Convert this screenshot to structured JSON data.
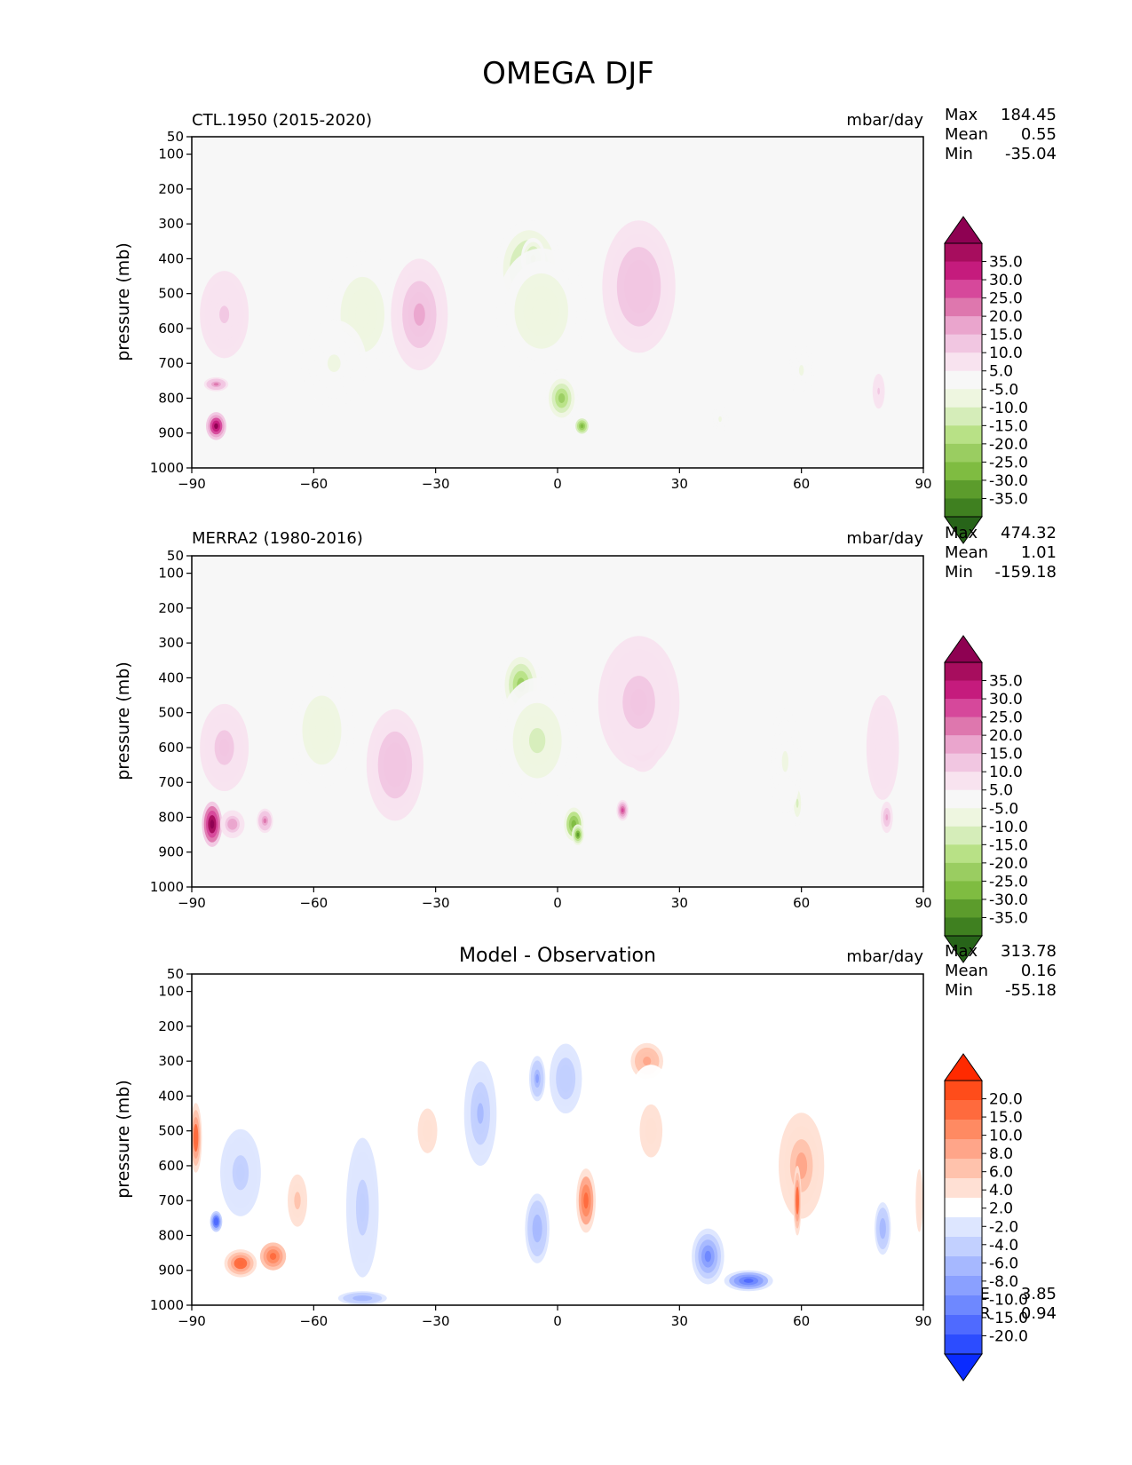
{
  "figure_title": "OMEGA DJF",
  "chart_data": [
    {
      "type": "heatmap",
      "id": "test",
      "title_left": "CTL.1950 (2015-2020)",
      "title_center": "",
      "units": "mbar/day",
      "ylabel": "pressure (mb)",
      "xticks": [
        "−90",
        "−60",
        "−30",
        "0",
        "30",
        "60",
        "90"
      ],
      "yticks": [
        "50",
        "100",
        "200",
        "300",
        "400",
        "500",
        "600",
        "700",
        "800",
        "900",
        "1000"
      ],
      "xlim": [
        -90,
        90
      ],
      "ylim": [
        1000,
        50
      ],
      "stats": {
        "max_label": "Max",
        "max": "184.45",
        "mean_label": "Mean",
        "mean": "0.55",
        "min_label": "Min",
        "min": "-35.04"
      },
      "colorbar": {
        "labels": [
          "35.0",
          "30.0",
          "25.0",
          "20.0",
          "15.0",
          "10.0",
          "5.0",
          "-5.0",
          "-10.0",
          "-15.0",
          "-20.0",
          "-25.0",
          "-30.0",
          "-35.0"
        ],
        "colors": [
          "#8e0152",
          "#a70d5e",
          "#c51b7d",
          "#d6489b",
          "#de77ae",
          "#eaa5cd",
          "#f1c6e1",
          "#f8e3ef",
          "#f7f7f7",
          "#eef6e0",
          "#d5edb9",
          "#b8e186",
          "#9acd61",
          "#7fbc41",
          "#5c9c2c",
          "#3f8020",
          "#276419"
        ]
      },
      "features": [
        {
          "lat": -84,
          "p": 880,
          "v": 40,
          "w": 2.5,
          "h": 80
        },
        {
          "lat": -84,
          "p": 760,
          "v": 18,
          "w": 3,
          "h": 40
        },
        {
          "lat": -82,
          "p": 560,
          "v": 6,
          "w": 6,
          "h": 250
        },
        {
          "lat": -48,
          "p": 560,
          "v": -10,
          "w": 9,
          "h": 360
        },
        {
          "lat": -55,
          "p": 700,
          "v": -6,
          "w": 8,
          "h": 250
        },
        {
          "lat": -34,
          "p": 560,
          "v": 12,
          "w": 7,
          "h": 320
        },
        {
          "lat": -7,
          "p": 430,
          "v": -20,
          "w": 8,
          "h": 280
        },
        {
          "lat": -6,
          "p": 400,
          "v": -20,
          "w": 3,
          "h": 120
        },
        {
          "lat": 1,
          "p": 800,
          "v": -22,
          "w": 4,
          "h": 140
        },
        {
          "lat": 6,
          "p": 880,
          "v": -30,
          "w": 2,
          "h": 55
        },
        {
          "lat": -4,
          "p": 550,
          "v": -10,
          "w": 11,
          "h": 360
        },
        {
          "lat": 21,
          "p": 500,
          "v": 22,
          "w": 5,
          "h": 260
        },
        {
          "lat": 20,
          "p": 480,
          "v": 10,
          "w": 9,
          "h": 380
        },
        {
          "lat": 40,
          "p": 860,
          "v": -6,
          "w": 2,
          "h": 80
        },
        {
          "lat": 60,
          "p": 720,
          "v": -6,
          "w": 3,
          "h": 150
        },
        {
          "lat": 79,
          "p": 780,
          "v": 6,
          "w": 1.5,
          "h": 100
        }
      ]
    },
    {
      "type": "heatmap",
      "id": "reference",
      "title_left": "MERRA2 (1980-2016)",
      "title_center": "",
      "units": "mbar/day",
      "ylabel": "pressure (mb)",
      "xticks": [
        "−90",
        "−60",
        "−30",
        "0",
        "30",
        "60",
        "90"
      ],
      "yticks": [
        "50",
        "100",
        "200",
        "300",
        "400",
        "500",
        "600",
        "700",
        "800",
        "900",
        "1000"
      ],
      "xlim": [
        -90,
        90
      ],
      "ylim": [
        1000,
        50
      ],
      "stats": {
        "max_label": "Max",
        "max": "474.32",
        "mean_label": "Mean",
        "mean": "1.01",
        "min_label": "Min",
        "min": "-159.18"
      },
      "colorbar": {
        "labels": [
          "35.0",
          "30.0",
          "25.0",
          "20.0",
          "15.0",
          "10.0",
          "5.0",
          "-5.0",
          "-10.0",
          "-15.0",
          "-20.0",
          "-25.0",
          "-30.0",
          "-35.0"
        ],
        "colors": [
          "#8e0152",
          "#a70d5e",
          "#c51b7d",
          "#d6489b",
          "#de77ae",
          "#eaa5cd",
          "#f1c6e1",
          "#f8e3ef",
          "#f7f7f7",
          "#eef6e0",
          "#d5edb9",
          "#b8e186",
          "#9acd61",
          "#7fbc41",
          "#5c9c2c",
          "#3f8020",
          "#276419"
        ]
      },
      "features": [
        {
          "lat": -85,
          "p": 820,
          "v": 45,
          "w": 2.5,
          "h": 130
        },
        {
          "lat": -80,
          "p": 820,
          "v": 14,
          "w": 3,
          "h": 80
        },
        {
          "lat": -72,
          "p": 810,
          "v": 18,
          "w": 2,
          "h": 70
        },
        {
          "lat": -82,
          "p": 600,
          "v": 8,
          "w": 6,
          "h": 250
        },
        {
          "lat": -58,
          "p": 550,
          "v": -10,
          "w": 8,
          "h": 330
        },
        {
          "lat": -40,
          "p": 650,
          "v": 10,
          "w": 7,
          "h": 320
        },
        {
          "lat": -9,
          "p": 420,
          "v": -22,
          "w": 5,
          "h": 200
        },
        {
          "lat": -5,
          "p": 580,
          "v": -12,
          "w": 10,
          "h": 360
        },
        {
          "lat": 4,
          "p": 820,
          "v": -28,
          "w": 3,
          "h": 120
        },
        {
          "lat": 5,
          "p": 850,
          "v": -35,
          "w": 1.5,
          "h": 60
        },
        {
          "lat": 21,
          "p": 520,
          "v": 15,
          "w": 6,
          "h": 300
        },
        {
          "lat": 16,
          "p": 780,
          "v": 25,
          "w": 1.5,
          "h": 60
        },
        {
          "lat": 20,
          "p": 470,
          "v": 8,
          "w": 10,
          "h": 380
        },
        {
          "lat": 59,
          "p": 760,
          "v": -12,
          "w": 1.5,
          "h": 130
        },
        {
          "lat": 56,
          "p": 640,
          "v": -6,
          "w": 4,
          "h": 300
        },
        {
          "lat": 81,
          "p": 800,
          "v": 12,
          "w": 1.5,
          "h": 90
        },
        {
          "lat": 80,
          "p": 600,
          "v": 5,
          "w": 4,
          "h": 300
        }
      ]
    },
    {
      "type": "heatmap",
      "id": "difference",
      "title_left": "",
      "title_center": "Model - Observation",
      "units": "mbar/day",
      "ylabel": "pressure (mb)",
      "xticks": [
        "−90",
        "−60",
        "−30",
        "0",
        "30",
        "60",
        "90"
      ],
      "yticks": [
        "50",
        "100",
        "200",
        "300",
        "400",
        "500",
        "600",
        "700",
        "800",
        "900",
        "1000"
      ],
      "xlim": [
        -90,
        90
      ],
      "ylim": [
        1000,
        50
      ],
      "stats": {
        "max_label": "Max",
        "max": "313.78",
        "mean_label": "Mean",
        "mean": "0.16",
        "min_label": "Min",
        "min": "-55.18"
      },
      "rmse_label": "RMSE",
      "rmse": "3.85",
      "corr_label": "CORR",
      "corr": "0.94",
      "colorbar": {
        "labels": [
          "20.0",
          "15.0",
          "10.0",
          "8.0",
          "6.0",
          "4.0",
          "2.0",
          "-2.0",
          "-4.0",
          "-6.0",
          "-8.0",
          "-10.0",
          "-15.0",
          "-20.0"
        ],
        "colors": [
          "#ff2a00",
          "#ff4c1a",
          "#ff6a3d",
          "#ff8a62",
          "#ffa589",
          "#ffc2ac",
          "#ffe0d4",
          "#ffffff",
          "#dde6ff",
          "#c2d0ff",
          "#a6b8ff",
          "#8aa0ff",
          "#6e88ff",
          "#4f6aff",
          "#2c4cff",
          "#0a2bff"
        ]
      },
      "features": [
        {
          "lat": -89,
          "p": 520,
          "v": 14,
          "w": 1.5,
          "h": 200
        },
        {
          "lat": -84,
          "p": 760,
          "v": -15,
          "w": 1.5,
          "h": 60
        },
        {
          "lat": -78,
          "p": 880,
          "v": 14,
          "w": 4,
          "h": 80
        },
        {
          "lat": -70,
          "p": 860,
          "v": 12,
          "w": 4,
          "h": 100
        },
        {
          "lat": -64,
          "p": 700,
          "v": 5,
          "w": 4,
          "h": 250
        },
        {
          "lat": -78,
          "p": 620,
          "v": -3,
          "w": 5,
          "h": 250
        },
        {
          "lat": -48,
          "p": 720,
          "v": -3,
          "w": 4,
          "h": 400
        },
        {
          "lat": -48,
          "p": 980,
          "v": -6,
          "w": 6,
          "h": 40
        },
        {
          "lat": -32,
          "p": 500,
          "v": 3,
          "w": 6,
          "h": 320
        },
        {
          "lat": -19,
          "p": 450,
          "v": -5,
          "w": 4,
          "h": 300
        },
        {
          "lat": -5,
          "p": 350,
          "v": -7,
          "w": 2,
          "h": 130
        },
        {
          "lat": -5,
          "p": 780,
          "v": -6,
          "w": 3,
          "h": 200
        },
        {
          "lat": 2,
          "p": 350,
          "v": -4,
          "w": 4,
          "h": 200
        },
        {
          "lat": 7,
          "p": 700,
          "v": 11,
          "w": 3,
          "h": 230
        },
        {
          "lat": 22,
          "p": 300,
          "v": 8,
          "w": 5,
          "h": 130
        },
        {
          "lat": 23,
          "p": 500,
          "v": 3,
          "w": 7,
          "h": 380
        },
        {
          "lat": 37,
          "p": 860,
          "v": -10,
          "w": 4,
          "h": 160
        },
        {
          "lat": 47,
          "p": 930,
          "v": -12,
          "w": 6,
          "h": 60
        },
        {
          "lat": 60,
          "p": 600,
          "v": 7,
          "w": 7,
          "h": 380
        },
        {
          "lat": 59,
          "p": 700,
          "v": 14,
          "w": 1,
          "h": 200
        },
        {
          "lat": 80,
          "p": 780,
          "v": -6,
          "w": 2,
          "h": 150
        },
        {
          "lat": 89,
          "p": 700,
          "v": 4,
          "w": 1.5,
          "h": 300
        }
      ]
    }
  ]
}
